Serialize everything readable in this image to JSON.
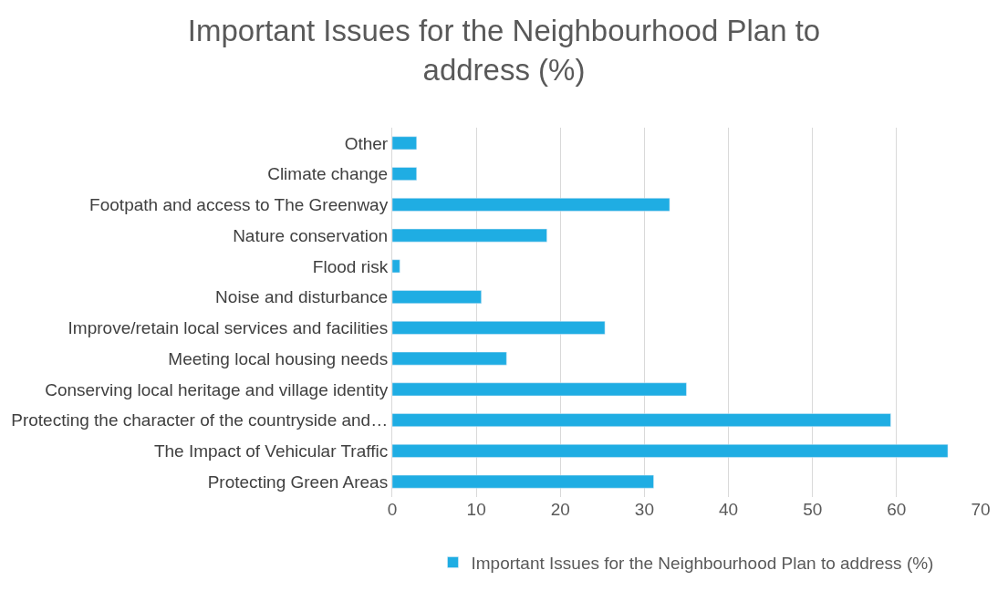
{
  "chart_data": {
    "type": "bar",
    "orientation": "horizontal",
    "title": "Important Issues for the Neighbourhood Plan to address (%)",
    "categories": [
      "Other",
      "Climate change",
      "Footpath and access to The Greenway",
      "Nature conservation",
      "Flood risk",
      "Noise and disturbance",
      "Improve/retain local services and facilities",
      "Meeting local housing needs",
      "Conserving local heritage and village identity",
      "Protecting the character of the countryside and…",
      "The Impact of Vehicular Traffic",
      "Protecting Green Areas"
    ],
    "series": [
      {
        "name": "Important Issues for the Neighbourhood Plan to address (%)",
        "color": "#1fade3",
        "values": [
          2.9,
          2.9,
          33.0,
          18.4,
          0.9,
          10.6,
          25.3,
          13.6,
          35.0,
          59.3,
          66.1,
          31.1
        ]
      }
    ],
    "xlim": [
      0,
      70
    ],
    "xticks": [
      0,
      10,
      20,
      30,
      40,
      50,
      60,
      70
    ],
    "grid": "x",
    "legend": "bottom"
  }
}
